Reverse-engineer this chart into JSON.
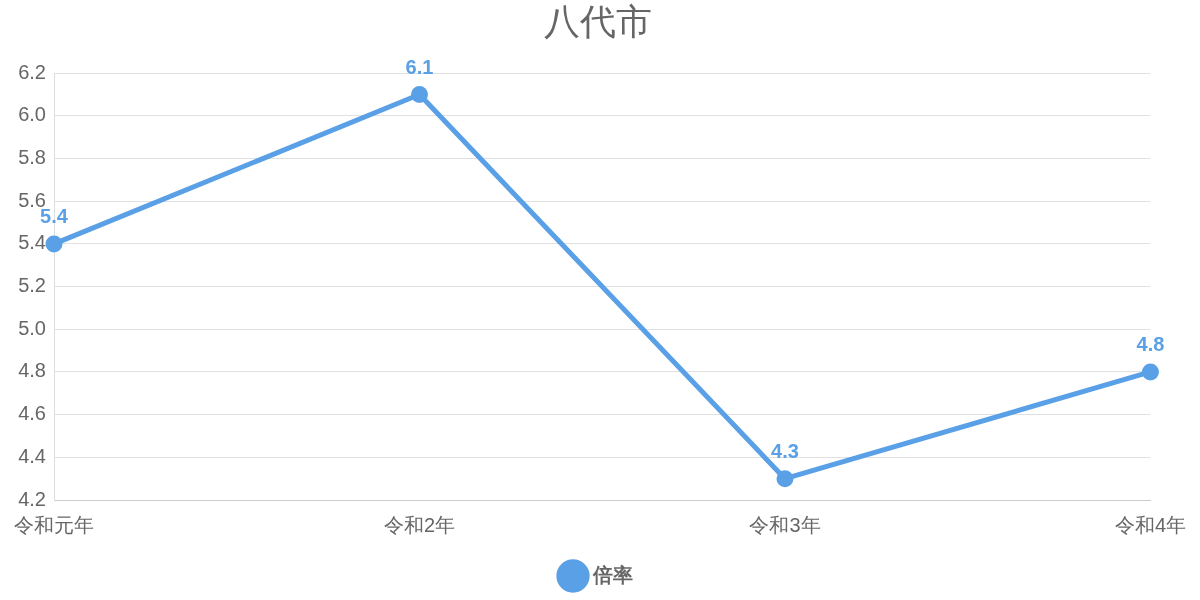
{
  "chart_data": {
    "type": "line",
    "title": "八代市",
    "categories": [
      "令和元年",
      "令和2年",
      "令和3年",
      "令和4年"
    ],
    "series": [
      {
        "name": "倍率",
        "color": "#5aa0e6",
        "values": [
          5.4,
          6.1,
          4.3,
          4.8
        ]
      }
    ],
    "ylim": [
      4.2,
      6.2
    ],
    "yticks": [
      4.2,
      4.4,
      4.6,
      4.8,
      {
        "value": 5,
        "label": "5.0"
      },
      5.2,
      5.4,
      5.6,
      5.8,
      {
        "value": 6,
        "label": "6.0"
      },
      6.2
    ],
    "grid": "y",
    "legend": "bottom",
    "marker": "circle",
    "line_style": "solid",
    "data_labels": true
  }
}
